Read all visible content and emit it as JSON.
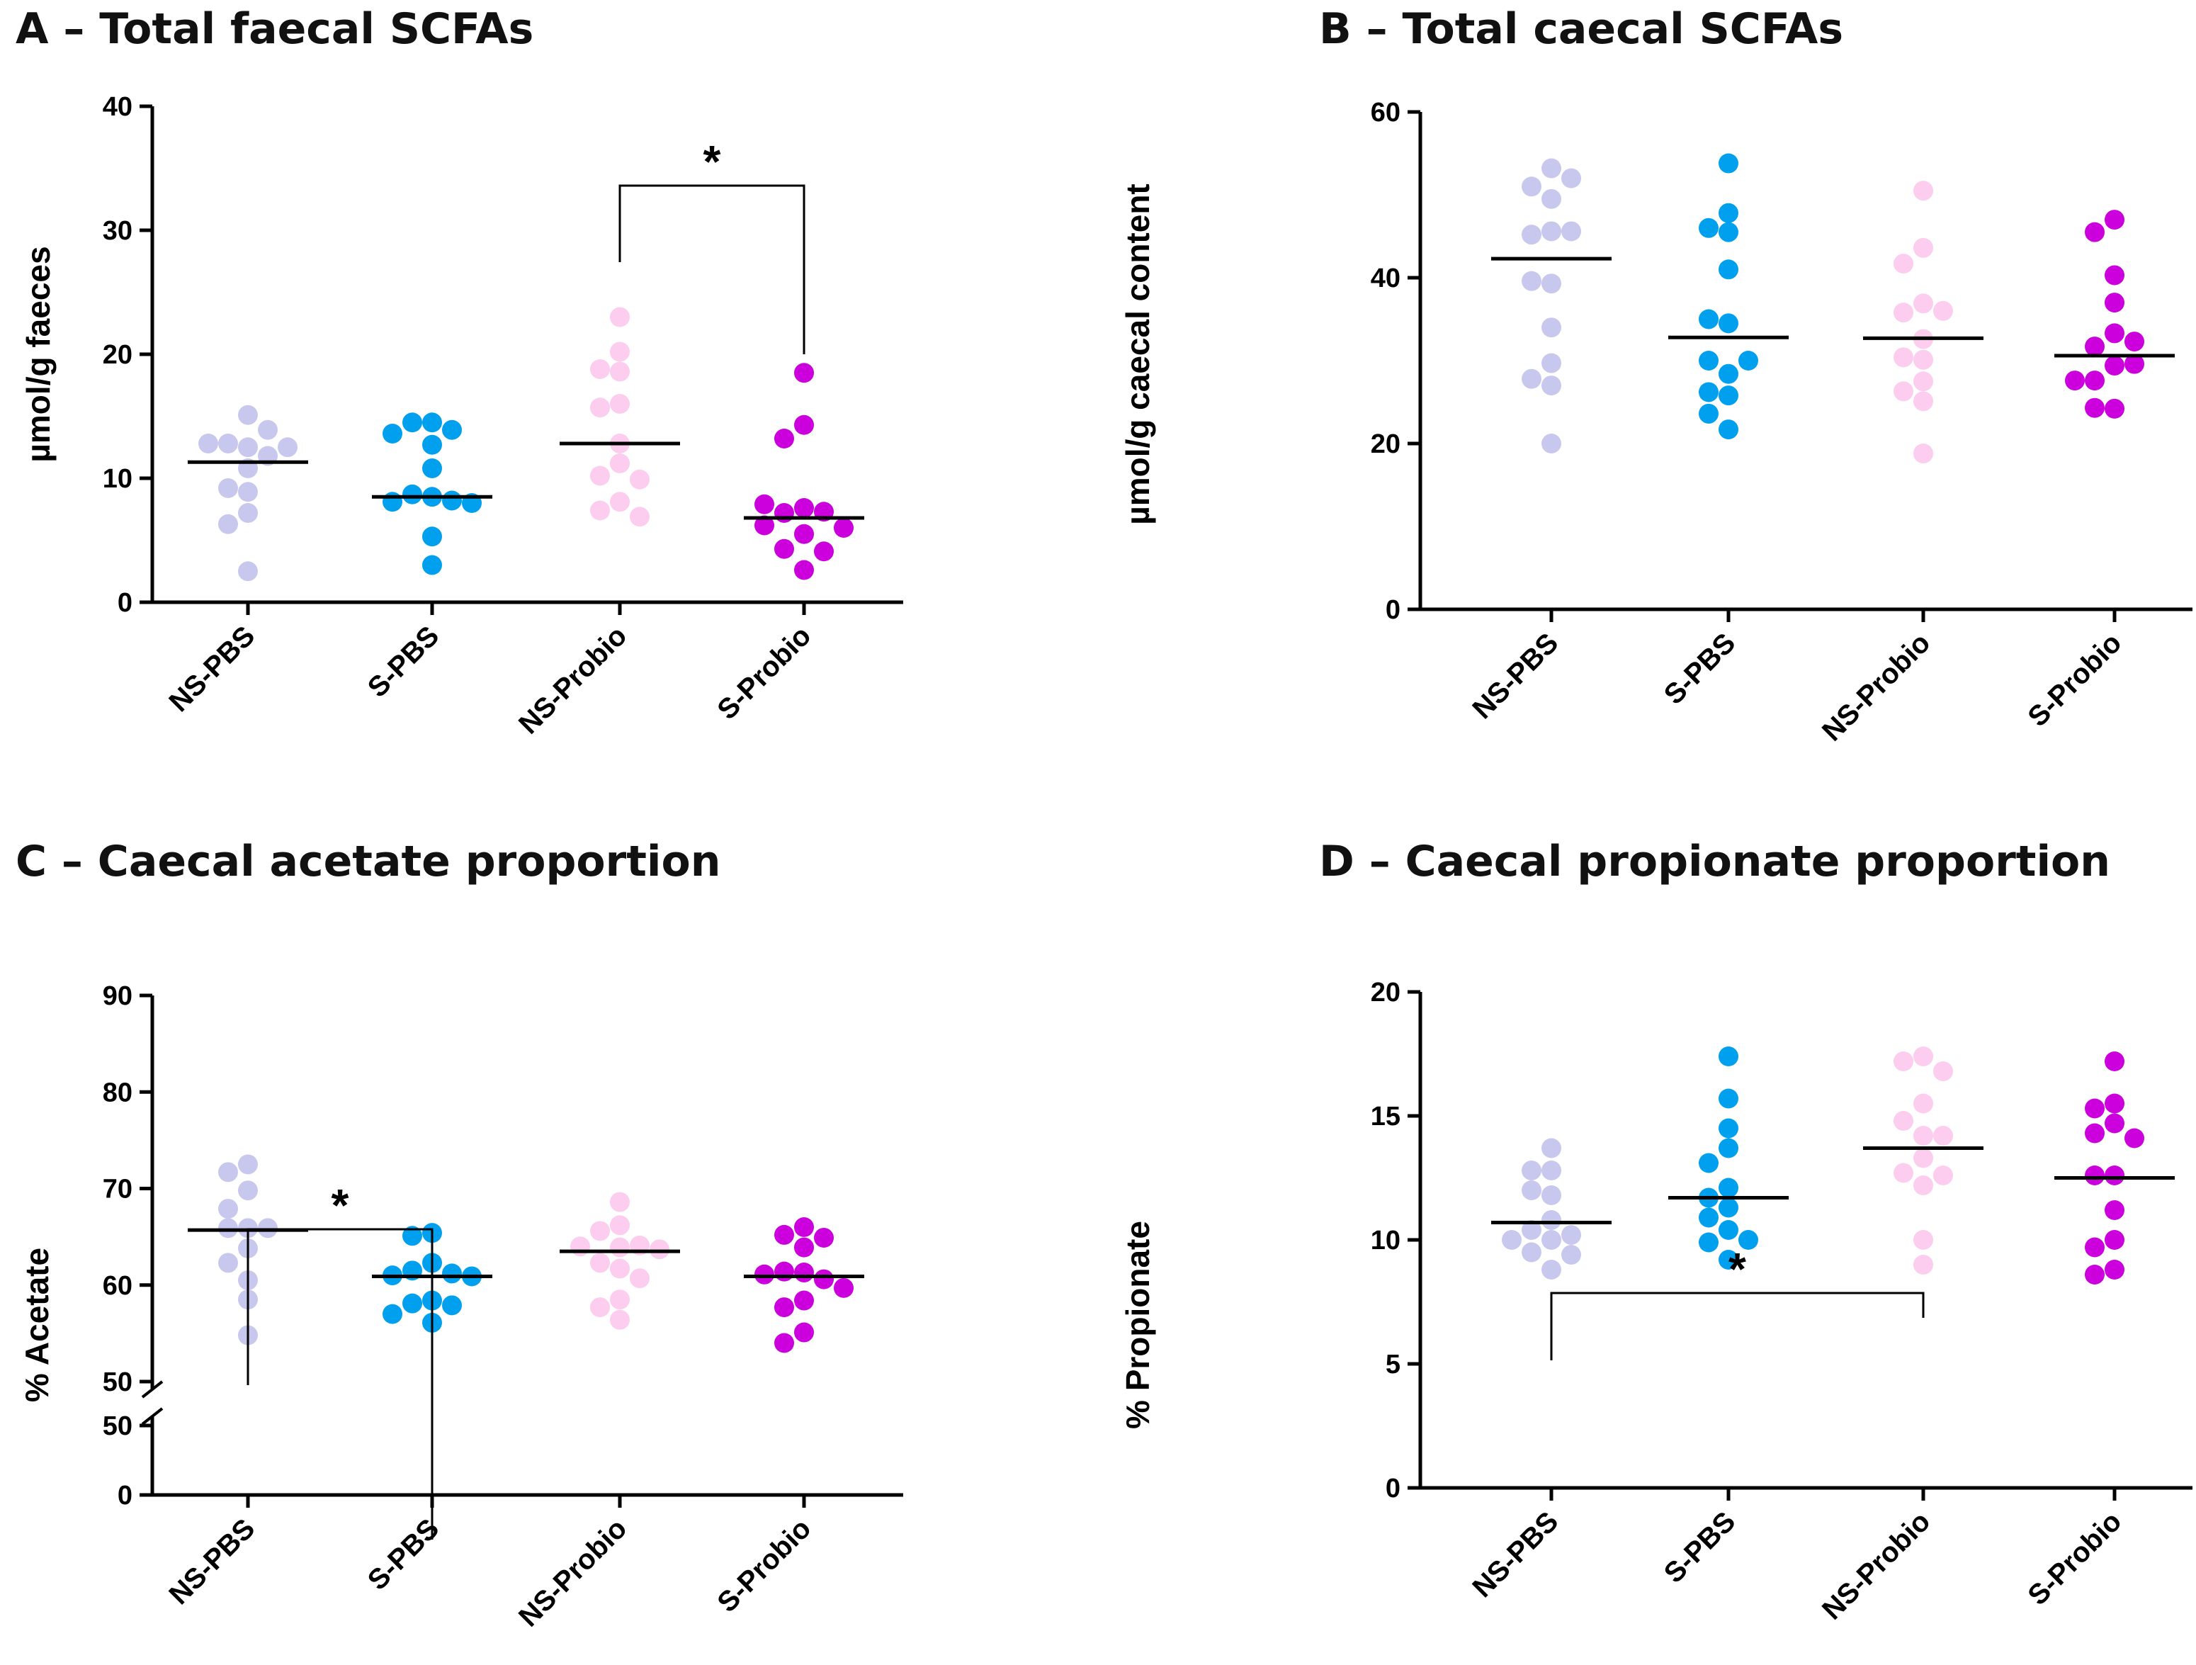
{
  "chart_data": [
    {
      "panel": "A",
      "type": "scatter",
      "title": "A – Total faecal SCFAs",
      "ylabel": "µmol/g faeces",
      "xlabel": "",
      "ylim": [
        0,
        40
      ],
      "yticks": [
        0,
        10,
        20,
        30,
        40
      ],
      "yticklabels": [
        "0",
        "10",
        "20",
        "30",
        "40"
      ],
      "categories": [
        "NS-PBS",
        "S-PBS",
        "NS-Probio",
        "S-Probio"
      ],
      "colors": [
        "#c8c8ee",
        "#00a0ee",
        "#fccdef",
        "#cc00dd"
      ],
      "series": [
        {
          "name": "NS-PBS",
          "values": [
            15.1,
            12.5,
            12.8,
            13.9,
            11.8,
            12.8,
            12.5,
            10.8,
            8.9,
            9.2,
            7.2,
            6.3,
            2.5
          ],
          "median": 11.3
        },
        {
          "name": "S-PBS",
          "values": [
            14.5,
            14.5,
            13.9,
            13.6,
            12.7,
            10.8,
            8.5,
            8.7,
            8.2,
            8.1,
            8.0,
            5.3,
            3.0
          ],
          "median": 8.5
        },
        {
          "name": "NS-Probio",
          "values": [
            23.0,
            20.2,
            18.6,
            18.8,
            16.0,
            15.7,
            12.8,
            11.2,
            10.2,
            9.9,
            8.1,
            7.4,
            6.9
          ],
          "median": 12.8
        },
        {
          "name": "S-Probio",
          "values": [
            18.5,
            14.3,
            13.2,
            7.6,
            7.2,
            7.3,
            7.9,
            6.2,
            5.5,
            6.0,
            4.3,
            4.1,
            2.6
          ],
          "median": 6.8
        }
      ],
      "significance": [
        {
          "from": "NS-Probio",
          "to": "S-Probio",
          "label": "*"
        }
      ]
    },
    {
      "panel": "B",
      "type": "scatter",
      "title": "B – Total caecal SCFAs",
      "ylabel": "µmol/g caecal content",
      "xlabel": "",
      "ylim": [
        0,
        60
      ],
      "yticks": [
        0,
        20,
        40,
        60
      ],
      "yticklabels": [
        "0",
        "20",
        "40",
        "60"
      ],
      "categories": [
        "NS-PBS",
        "S-PBS",
        "NS-Probio",
        "S-Probio"
      ],
      "colors": [
        "#c8c8ee",
        "#00a0ee",
        "#fccdef",
        "#cc00dd"
      ],
      "series": [
        {
          "name": "NS-PBS",
          "values": [
            53.2,
            51.0,
            52.0,
            49.5,
            45.6,
            45.2,
            45.6,
            39.3,
            39.6,
            34.0,
            29.7,
            27.0,
            27.8,
            20.0
          ],
          "median": 42.3
        },
        {
          "name": "S-PBS",
          "values": [
            53.8,
            47.8,
            45.5,
            46.0,
            41.0,
            34.5,
            35.0,
            28.4,
            30.0,
            30.0,
            25.8,
            26.2,
            23.6,
            21.7
          ],
          "median": 32.8
        },
        {
          "name": "NS-Probio",
          "values": [
            50.5,
            43.6,
            41.7,
            36.9,
            35.8,
            36.0,
            32.6,
            30.4,
            30.1,
            27.5,
            26.3,
            25.1,
            18.8
          ],
          "median": 32.7
        },
        {
          "name": "S-Probio",
          "values": [
            47.0,
            45.5,
            40.3,
            37.0,
            33.3,
            31.7,
            32.3,
            29.4,
            29.6,
            27.6,
            27.6,
            24.2,
            24.3
          ],
          "median": 30.6
        }
      ],
      "significance": []
    },
    {
      "panel": "C",
      "type": "scatter",
      "title": "C – Caecal acetate proportion",
      "ylabel": "% Acetate",
      "xlabel": "",
      "ylim": [
        50,
        90
      ],
      "axis_break": {
        "lower_tick": 0,
        "lower_labels": [
          "50",
          "0"
        ]
      },
      "yticks": [
        50,
        60,
        70,
        80,
        90
      ],
      "yticklabels": [
        "50",
        "60",
        "70",
        "80",
        "90"
      ],
      "categories": [
        "NS-PBS",
        "S-PBS",
        "NS-Probio",
        "S-Probio"
      ],
      "colors": [
        "#c8c8ee",
        "#00a0ee",
        "#fccdef",
        "#cc00dd"
      ],
      "series": [
        {
          "name": "NS-PBS",
          "values": [
            72.5,
            71.7,
            69.8,
            67.9,
            65.9,
            65.9,
            65.9,
            63.8,
            62.3,
            60.5,
            58.5,
            54.8
          ],
          "median": 65.7
        },
        {
          "name": "S-PBS",
          "values": [
            65.4,
            65.1,
            62.3,
            61.5,
            61.2,
            61.0,
            60.9,
            58.4,
            58.1,
            57.9,
            57.0,
            56.1
          ],
          "median": 60.9
        },
        {
          "name": "NS-Probio",
          "values": [
            68.6,
            66.2,
            65.6,
            63.9,
            64.1,
            64.0,
            63.7,
            62.3,
            61.7,
            60.7,
            58.5,
            57.7,
            56.4
          ],
          "median": 63.5
        },
        {
          "name": "S-Probio",
          "values": [
            66.0,
            65.2,
            64.9,
            63.9,
            61.3,
            61.4,
            60.6,
            61.1,
            59.7,
            58.4,
            57.7,
            55.1,
            54.0
          ],
          "median": 60.9
        }
      ],
      "significance": [
        {
          "from": "NS-PBS",
          "to": "S-PBS",
          "label": "*"
        }
      ]
    },
    {
      "panel": "D",
      "type": "scatter",
      "title": "D – Caecal propionate proportion",
      "ylabel": "% Propionate",
      "xlabel": "",
      "ylim": [
        0,
        20
      ],
      "yticks": [
        0,
        5,
        10,
        15,
        20
      ],
      "yticklabels": [
        "0",
        "5",
        "10",
        "15",
        "20"
      ],
      "categories": [
        "NS-PBS",
        "S-PBS",
        "NS-Probio",
        "S-Probio"
      ],
      "colors": [
        "#c8c8ee",
        "#00a0ee",
        "#fccdef",
        "#cc00dd"
      ],
      "series": [
        {
          "name": "NS-PBS",
          "values": [
            13.7,
            12.8,
            12.8,
            11.8,
            12.0,
            10.8,
            10.4,
            10.2,
            10.0,
            10.0,
            9.5,
            9.4,
            8.8
          ],
          "median": 10.7
        },
        {
          "name": "S-PBS",
          "values": [
            17.4,
            15.7,
            14.5,
            13.7,
            13.1,
            12.1,
            11.7,
            11.3,
            10.9,
            10.4,
            9.9,
            10.0,
            9.2
          ],
          "median": 11.7
        },
        {
          "name": "NS-Probio",
          "values": [
            17.4,
            17.2,
            16.8,
            15.5,
            14.8,
            14.2,
            14.2,
            13.3,
            12.7,
            12.6,
            12.2,
            10.0,
            9.0
          ],
          "median": 13.7
        },
        {
          "name": "S-Probio",
          "values": [
            17.2,
            15.5,
            15.3,
            14.7,
            14.3,
            14.1,
            12.6,
            12.6,
            11.2,
            10.0,
            9.7,
            8.8,
            8.6
          ],
          "median": 12.5
        }
      ],
      "significance": [
        {
          "from": "NS-PBS",
          "to": "NS-Probio",
          "label": "*"
        }
      ]
    }
  ]
}
